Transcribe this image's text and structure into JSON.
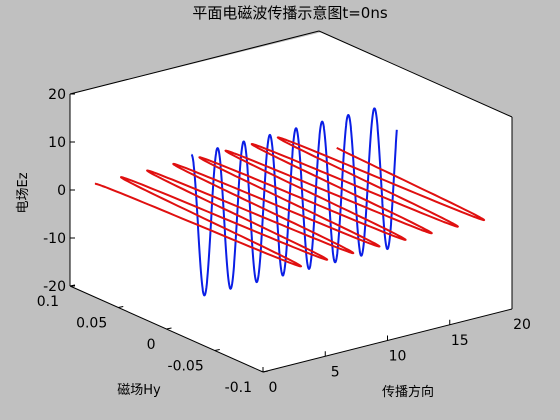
{
  "chart_data": {
    "type": "line",
    "dimensions": 3,
    "title": "平面电磁波传播示意图t=0ns",
    "xlabel": "传播方向",
    "ylabel": "磁场Hy",
    "zlabel": "电场Ez",
    "xlim": [
      0,
      20
    ],
    "ylim": [
      -0.1,
      0.1
    ],
    "zlim": [
      -20,
      20
    ],
    "x_ticks": [
      "0",
      "5",
      "10",
      "15",
      "20"
    ],
    "y_ticks": [
      "-0.1",
      "-0.05",
      "0",
      "0.05",
      "0.1"
    ],
    "z_ticks": [
      "-20",
      "-10",
      "0",
      "10",
      "20"
    ],
    "grid": false,
    "box": true,
    "series": [
      {
        "role": "electric field Ez (in x-z plane, y = 0)",
        "color": "#0a1ee6",
        "x_range": [
          2,
          18.5
        ],
        "wavelength": 2.1,
        "amplitude_z": 15,
        "amplitude_y": 0
      },
      {
        "role": "magnetic field Hy (in x-y plane, z = 0)",
        "color": "#e01010",
        "x_range": [
          2,
          18.5
        ],
        "wavelength": 2.1,
        "amplitude_z": 0,
        "amplitude_y": 0.1
      }
    ]
  }
}
